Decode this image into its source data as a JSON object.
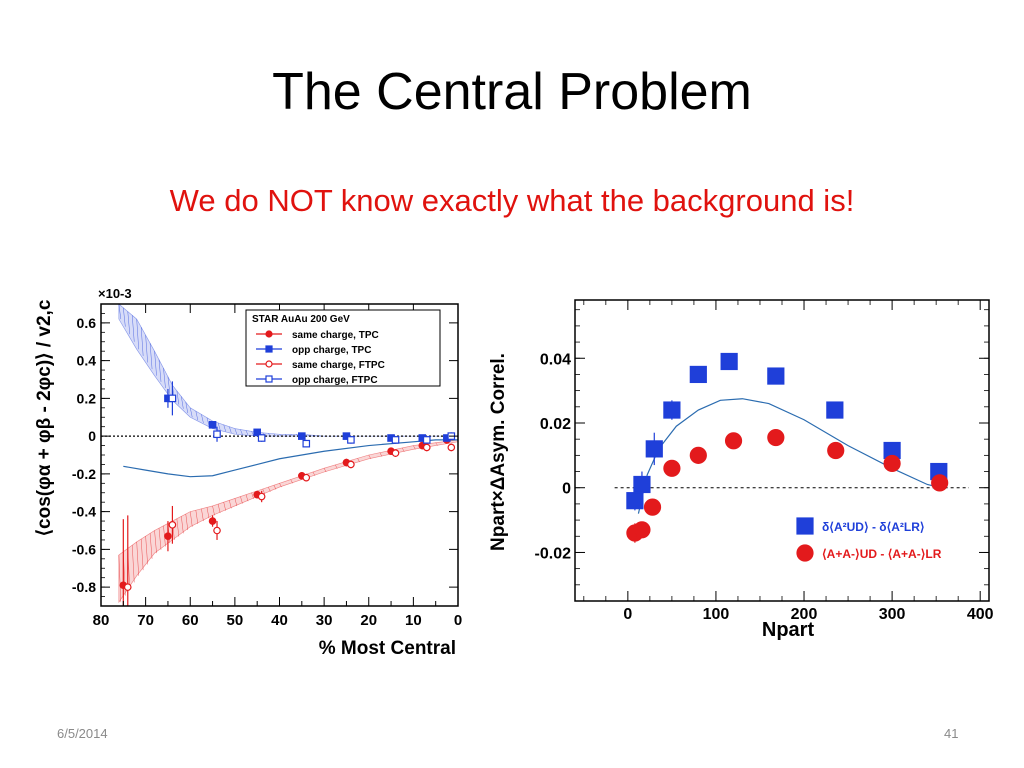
{
  "slide": {
    "title": "The Central Problem",
    "subtitle": "We do NOT know exactly what the background is!",
    "footer_date": "6/5/2014",
    "footer_page": "41"
  },
  "chart_data": [
    {
      "type": "scatter",
      "xlabel": "% Most Central",
      "ylabel": "⟨cos(φα + φβ - 2φc)⟩ / v2,c",
      "y_multiplier": "×10-3",
      "xlim": [
        80,
        0
      ],
      "ylim": [
        -0.9,
        0.7
      ],
      "x_ticks": [
        80,
        70,
        60,
        50,
        40,
        30,
        20,
        10,
        0
      ],
      "y_ticks": [
        -0.8,
        -0.6,
        -0.4,
        -0.2,
        0,
        0.2,
        0.4,
        0.6
      ],
      "y_tick_labels": [
        "-0.8",
        "-0.6",
        "-0.4",
        "-0.2",
        "0",
        "0.2",
        "0.4",
        "0.6"
      ],
      "grid": false,
      "legend_position": "top-right",
      "legend_title": "STAR  AuAu 200 GeV",
      "series": [
        {
          "name": "same charge, TPC",
          "marker": "filled-circle",
          "color": "#e31a1c",
          "x": [
            75,
            65,
            55,
            45,
            35,
            25,
            15,
            8,
            2.5
          ],
          "y": [
            -0.79,
            -0.53,
            -0.45,
            -0.31,
            -0.21,
            -0.14,
            -0.08,
            -0.05,
            -0.02
          ],
          "err": [
            0.35,
            0.08,
            0.03,
            0.02,
            0.02,
            0.02,
            0.02,
            0.02,
            0.02
          ]
        },
        {
          "name": "opp charge, TPC",
          "marker": "filled-square",
          "color": "#1f3fd9",
          "x": [
            65,
            55,
            45,
            35,
            25,
            15,
            8,
            2.5
          ],
          "y": [
            0.2,
            0.06,
            0.02,
            0.0,
            0.0,
            -0.01,
            -0.01,
            -0.01
          ],
          "err": [
            0.05,
            0.02,
            0.01,
            0.01,
            0.01,
            0.01,
            0.01,
            0.01
          ]
        },
        {
          "name": "same charge, FTPC",
          "marker": "open-circle",
          "color": "#e31a1c",
          "x": [
            74,
            64,
            54,
            44,
            34,
            24,
            14,
            7,
            1.5
          ],
          "y": [
            -0.8,
            -0.47,
            -0.5,
            -0.32,
            -0.22,
            -0.15,
            -0.09,
            -0.06,
            -0.06
          ],
          "err": [
            0.38,
            0.1,
            0.05,
            0.03,
            0.02,
            0.02,
            0.02,
            0.02,
            0.02
          ]
        },
        {
          "name": "opp charge, FTPC",
          "marker": "open-square",
          "color": "#1f3fd9",
          "x": [
            64,
            54,
            44,
            34,
            24,
            14,
            7,
            1.5
          ],
          "y": [
            0.2,
            0.01,
            -0.01,
            -0.04,
            -0.02,
            -0.02,
            -0.02,
            0.0
          ],
          "err": [
            0.09,
            0.04,
            0.02,
            0.02,
            0.02,
            0.02,
            0.02,
            0.02
          ]
        }
      ],
      "bands": [
        {
          "color": "#1f3fd9",
          "x": [
            76,
            72,
            68,
            64,
            60,
            55,
            50,
            45,
            40,
            35,
            30,
            20,
            10,
            0
          ],
          "lower": [
            0.62,
            0.46,
            0.32,
            0.19,
            0.1,
            0.04,
            0.01,
            0.0,
            0.0,
            0.0,
            0.0,
            0.0,
            0.0,
            0.0
          ],
          "upper": [
            0.7,
            0.62,
            0.45,
            0.27,
            0.15,
            0.08,
            0.04,
            0.02,
            0.01,
            0.01,
            0.0,
            0.0,
            0.0,
            0.0
          ]
        },
        {
          "color": "#e31a1c",
          "x": [
            76,
            72,
            68,
            64,
            60,
            55,
            50,
            45,
            40,
            30,
            20,
            10,
            0
          ],
          "lower": [
            -0.88,
            -0.74,
            -0.62,
            -0.55,
            -0.48,
            -0.42,
            -0.37,
            -0.32,
            -0.27,
            -0.19,
            -0.12,
            -0.07,
            -0.03
          ],
          "upper": [
            -0.63,
            -0.56,
            -0.5,
            -0.45,
            -0.4,
            -0.37,
            -0.33,
            -0.29,
            -0.25,
            -0.17,
            -0.1,
            -0.05,
            -0.02
          ]
        }
      ],
      "curve": {
        "color": "#2b6cb0",
        "x": [
          75,
          70,
          65,
          60,
          55,
          50,
          45,
          40,
          30,
          20,
          10,
          5,
          0
        ],
        "y": [
          -0.16,
          -0.18,
          -0.2,
          -0.215,
          -0.21,
          -0.18,
          -0.15,
          -0.12,
          -0.08,
          -0.05,
          -0.03,
          -0.02,
          -0.02
        ]
      }
    },
    {
      "type": "scatter",
      "xlabel": "Npart",
      "ylabel": "Npart×ΔAsym. Correl.",
      "xlim": [
        -60,
        410
      ],
      "ylim": [
        -0.035,
        0.058
      ],
      "x_ticks": [
        0,
        100,
        200,
        300,
        400
      ],
      "y_ticks": [
        -0.02,
        0,
        0.02,
        0.04
      ],
      "y_tick_labels": [
        "-0.02",
        "0",
        "0.02",
        "0.04"
      ],
      "grid": false,
      "legend_position": "bottom-right",
      "series": [
        {
          "name": "δ⟨A²UD⟩ - δ⟨A²LR⟩",
          "marker": "filled-square",
          "color": "#1f3fd9",
          "x": [
            8,
            16,
            30,
            50,
            80,
            115,
            168,
            235,
            300,
            353
          ],
          "y": [
            -0.004,
            0.001,
            0.012,
            0.024,
            0.035,
            0.039,
            0.0345,
            0.024,
            0.0115,
            0.005
          ],
          "err": [
            0.003,
            0.004,
            0.005,
            0.003,
            0.001,
            0.001,
            0.001,
            0.001,
            0.001,
            0.001
          ]
        },
        {
          "name": "⟨A+A-⟩UD - ⟨A+A-⟩LR",
          "marker": "filled-circle",
          "color": "#e31a1c",
          "x": [
            8,
            16,
            28,
            50,
            80,
            120,
            168,
            236,
            300,
            354
          ],
          "y": [
            -0.014,
            -0.013,
            -0.006,
            0.006,
            0.01,
            0.0145,
            0.0155,
            0.0115,
            0.0075,
            0.0015
          ],
          "err": [
            0.003,
            0.002,
            0.002,
            0.001,
            0.001,
            0.001,
            0.001,
            0.001,
            0.001,
            0.001
          ]
        }
      ],
      "curve": {
        "color": "#2b6cb0",
        "x": [
          12,
          22,
          35,
          55,
          80,
          105,
          130,
          160,
          200,
          250,
          300,
          340,
          355
        ],
        "y": [
          -0.008,
          0.004,
          0.012,
          0.019,
          0.024,
          0.027,
          0.0275,
          0.026,
          0.021,
          0.013,
          0.006,
          0.001,
          0.0
        ]
      }
    }
  ]
}
